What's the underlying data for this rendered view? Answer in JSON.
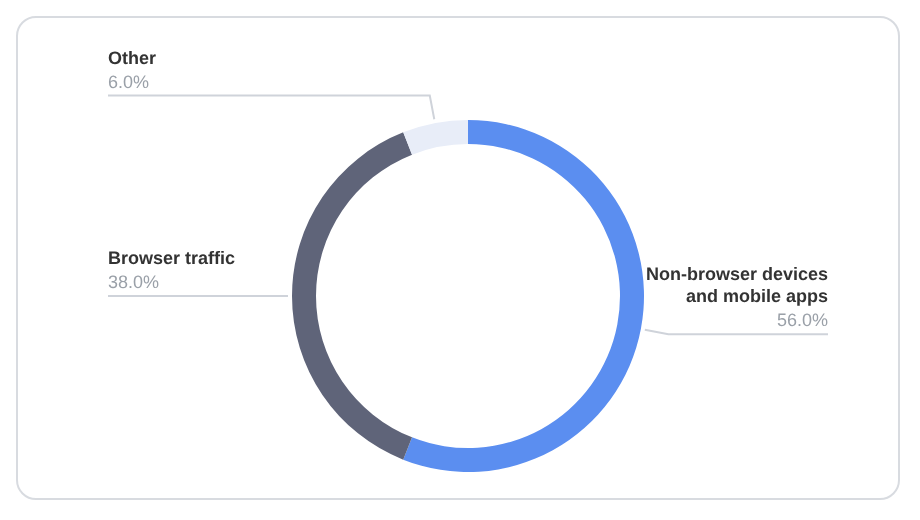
{
  "chart_data": {
    "type": "donut",
    "categories": [
      "Non-browser devices and mobile apps",
      "Browser traffic",
      "Other"
    ],
    "values": [
      56.0,
      38.0,
      6.0
    ],
    "colors": [
      "#5b8ef0",
      "#5f6479",
      "#e8edf8"
    ],
    "value_labels": [
      "56.0%",
      "38.0%",
      "6.0%"
    ]
  }
}
